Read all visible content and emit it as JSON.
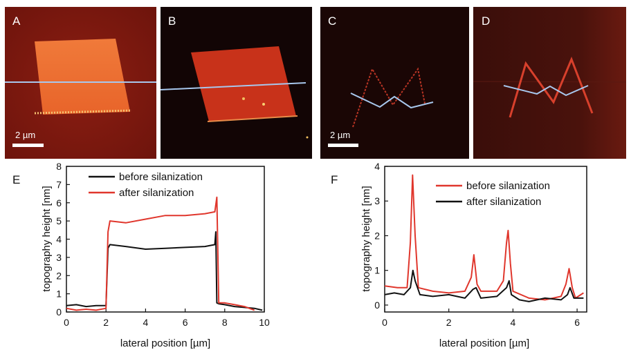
{
  "panels": {
    "A": {
      "letter": "A",
      "scale_bar": "2 µm"
    },
    "B": {
      "letter": "B"
    },
    "C": {
      "letter": "C",
      "scale_bar": "2 µm"
    },
    "D": {
      "letter": "D"
    },
    "E": {
      "letter": "E"
    },
    "F": {
      "letter": "F"
    }
  },
  "colors": {
    "red_trace": "#e0362c",
    "black_trace": "#111111",
    "profile_line": "#a8c8ee"
  },
  "chart_data": [
    {
      "type": "line",
      "panel": "E",
      "xlabel": "lateral position [µm]",
      "ylabel": "topography height [nm]",
      "xlim": [
        0,
        10
      ],
      "ylim": [
        0,
        8
      ],
      "xticks": [
        0,
        2,
        4,
        6,
        8,
        10
      ],
      "yticks": [
        0,
        1,
        2,
        3,
        4,
        5,
        6,
        7,
        8
      ],
      "legend_position": "top-right",
      "series": [
        {
          "name": "before silanization",
          "color": "#111111",
          "x": [
            0,
            0.5,
            1.0,
            1.5,
            2.0,
            2.1,
            2.2,
            3,
            4,
            5,
            6,
            7,
            7.5,
            7.55,
            7.6,
            7.7,
            8,
            8.5,
            9,
            9.5,
            9.9
          ],
          "y": [
            0.35,
            0.4,
            0.3,
            0.35,
            0.35,
            3.5,
            3.7,
            3.6,
            3.45,
            3.5,
            3.55,
            3.6,
            3.7,
            4.4,
            0.5,
            0.45,
            0.4,
            0.3,
            0.25,
            0.2,
            0.1
          ]
        },
        {
          "name": "after silanization",
          "color": "#e0362c",
          "x": [
            0,
            0.5,
            1.0,
            1.5,
            2.0,
            2.1,
            2.2,
            3,
            4,
            5,
            6,
            7,
            7.5,
            7.6,
            7.7,
            7.8,
            8,
            8.5,
            9,
            9.5
          ],
          "y": [
            0.2,
            0.1,
            0.15,
            0.1,
            0.2,
            4.4,
            5.0,
            4.9,
            5.1,
            5.3,
            5.3,
            5.4,
            5.5,
            6.3,
            0.5,
            0.5,
            0.5,
            0.4,
            0.3,
            0.1
          ]
        }
      ]
    },
    {
      "type": "line",
      "panel": "F",
      "xlabel": "lateral position [µm]",
      "ylabel": "topography height [nm]",
      "xlim": [
        0,
        6.3
      ],
      "ylim": [
        -0.2,
        4
      ],
      "xticks": [
        0,
        2,
        4,
        6
      ],
      "yticks": [
        0,
        1,
        2,
        3,
        4
      ],
      "legend_position": "top-right",
      "series": [
        {
          "name": "before silanization",
          "color": "#e0362c",
          "x": [
            0,
            0.4,
            0.7,
            0.8,
            0.87,
            0.95,
            1.05,
            1.5,
            2.0,
            2.5,
            2.7,
            2.78,
            2.88,
            3.0,
            3.5,
            3.7,
            3.8,
            3.85,
            3.92,
            4.0,
            4.5,
            5.0,
            5.5,
            5.65,
            5.75,
            5.85,
            5.95,
            6.2
          ],
          "y": [
            0.55,
            0.5,
            0.5,
            1.8,
            3.75,
            2.0,
            0.5,
            0.4,
            0.35,
            0.4,
            0.8,
            1.45,
            0.6,
            0.4,
            0.4,
            0.7,
            1.8,
            2.15,
            1.2,
            0.4,
            0.2,
            0.15,
            0.25,
            0.6,
            1.05,
            0.5,
            0.2,
            0.35
          ]
        },
        {
          "name": "after silanization",
          "color": "#111111",
          "x": [
            0,
            0.3,
            0.6,
            0.8,
            0.88,
            0.95,
            1.1,
            1.5,
            2.0,
            2.5,
            2.75,
            2.85,
            3.0,
            3.5,
            3.8,
            3.88,
            3.95,
            4.2,
            4.5,
            5.0,
            5.5,
            5.7,
            5.78,
            5.9,
            6.2
          ],
          "y": [
            0.3,
            0.35,
            0.3,
            0.5,
            1.0,
            0.7,
            0.3,
            0.25,
            0.3,
            0.2,
            0.45,
            0.5,
            0.2,
            0.25,
            0.5,
            0.7,
            0.3,
            0.15,
            0.1,
            0.2,
            0.15,
            0.3,
            0.5,
            0.2,
            0.2
          ]
        }
      ]
    }
  ]
}
